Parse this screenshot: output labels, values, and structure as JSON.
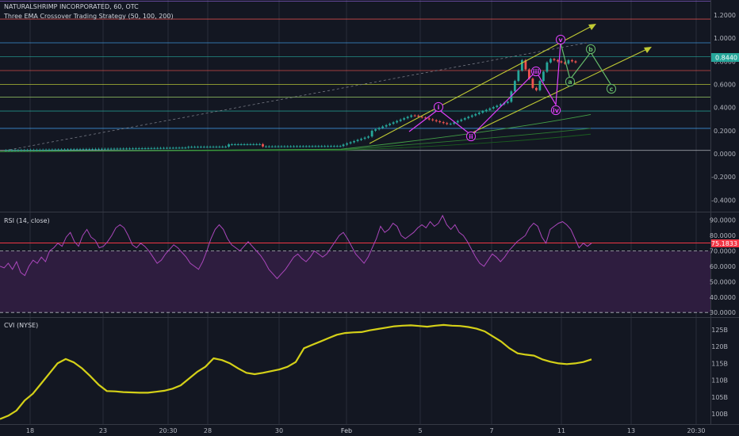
{
  "header": {
    "symbol": "NATURALSHRIMP INCORPORATED, 60, OTC",
    "strategy": "Three EMA Crossover Trading Strategy (50, 100, 200)"
  },
  "price_badge": "0.8440",
  "rsi_header": "RSI (14, close)",
  "rsi_badge": "75.1833",
  "cvi_header": "CVI (NYSE)",
  "colors": {
    "background": "#131722",
    "up_candle": "#26a69a",
    "down_candle": "#ef5350",
    "wave_pink": "#e040fb",
    "wave_green": "#66bb6a",
    "channel": "#c0ca33",
    "rsi_line": "#ab47bc",
    "rsi_band": "#2e1d3f",
    "rsi_upper": "#f23645",
    "cvi_line": "#d4d018",
    "badge_price": "#26a69a",
    "badge_rsi": "#f23645"
  },
  "chart_data": [
    {
      "type": "candlestick",
      "pane": "price",
      "y_ticks": [
        "1.2000",
        "1.0000",
        "0.8000",
        "0.6000",
        "0.4000",
        "0.2000",
        "0.0000",
        "-0.2000",
        "-0.4000"
      ],
      "y_tick_values": [
        1.2,
        1.0,
        0.8,
        0.6,
        0.4,
        0.2,
        0.0,
        -0.2,
        -0.4
      ],
      "ylim": [
        -0.5,
        1.33
      ],
      "last_price": 0.844,
      "horizontal_levels": [
        1.32,
        1.165,
        0.96,
        0.84,
        0.72,
        0.6,
        0.49,
        0.37,
        0.22,
        0.03
      ],
      "elliott_wave_labels": [
        "i",
        "ii",
        "iii",
        "iv",
        "v",
        "a",
        "b",
        "c"
      ],
      "ema_series": [
        "EMA 50",
        "EMA 100",
        "EMA 200"
      ]
    },
    {
      "type": "line",
      "pane": "rsi",
      "y_ticks": [
        "90.0000",
        "80.0000",
        "70.0000",
        "60.0000",
        "50.0000",
        "40.0000",
        "30.0000"
      ],
      "y_tick_values": [
        90,
        80,
        70,
        60,
        50,
        40,
        30
      ],
      "ylim": [
        27,
        95
      ],
      "upper_band": 70,
      "lower_band": 30,
      "last_value": 75.1833,
      "values": [
        60,
        59,
        62,
        58,
        63,
        56,
        54,
        60,
        64,
        62,
        66,
        63,
        70,
        72,
        75,
        73,
        79,
        82,
        76,
        73,
        80,
        84,
        79,
        77,
        72,
        73,
        76,
        80,
        85,
        87,
        85,
        80,
        74,
        72,
        75,
        73,
        70,
        66,
        62,
        64,
        68,
        71,
        74,
        72,
        69,
        66,
        62,
        60,
        58,
        63,
        70,
        78,
        84,
        87,
        84,
        78,
        74,
        72,
        70,
        73,
        76,
        73,
        70,
        67,
        63,
        58,
        55,
        52,
        55,
        58,
        62,
        66,
        68,
        65,
        63,
        66,
        70,
        68,
        66,
        68,
        72,
        76,
        80,
        82,
        78,
        73,
        68,
        65,
        62,
        66,
        72,
        78,
        86,
        82,
        84,
        88,
        86,
        80,
        78,
        80,
        82,
        85,
        87,
        85,
        89,
        86,
        88,
        93,
        87,
        84,
        87,
        82,
        80,
        76,
        71,
        66,
        62,
        60,
        64,
        68,
        66,
        63,
        66,
        70,
        73,
        76,
        78,
        80,
        85,
        88,
        86,
        79,
        75,
        84,
        86,
        88,
        89,
        87,
        84,
        78,
        72,
        75,
        73,
        75
      ]
    },
    {
      "type": "line",
      "pane": "cvi",
      "y_ticks": [
        "125B",
        "120B",
        "115B",
        "110B",
        "105B",
        "100B"
      ],
      "y_tick_values": [
        125,
        120,
        115,
        110,
        105,
        100
      ],
      "ylim": [
        97,
        128.5
      ],
      "unit": "B",
      "values": [
        98.5,
        99.5,
        101,
        104,
        106,
        109,
        112,
        115,
        116.3,
        115.3,
        113.5,
        111.2,
        108.7,
        106.8,
        106.7,
        106.5,
        106.4,
        106.3,
        106.3,
        106.6,
        106.9,
        107.5,
        108.5,
        110.5,
        112.5,
        114,
        116.5,
        116,
        115,
        113.5,
        112.2,
        111.8,
        112.2,
        112.7,
        113.2,
        114,
        115.4,
        119.5,
        120.5,
        121.5,
        122.5,
        123.5,
        124,
        124.2,
        124.3,
        124.8,
        125.2,
        125.6,
        126,
        126.2,
        126.3,
        126.1,
        125.9,
        126.2,
        126.4,
        126.2,
        126.1,
        125.8,
        125.3,
        124.5,
        123,
        121.5,
        119.5,
        118,
        117.6,
        117.3,
        116.2,
        115.5,
        115.0,
        114.8,
        115.0,
        115.4,
        116.2
      ]
    }
  ],
  "x_axis": {
    "tick_labels": [
      "18",
      "23",
      "20:30",
      "28",
      "30",
      "Feb",
      "5",
      "7",
      "11",
      "13",
      "20:30"
    ]
  }
}
